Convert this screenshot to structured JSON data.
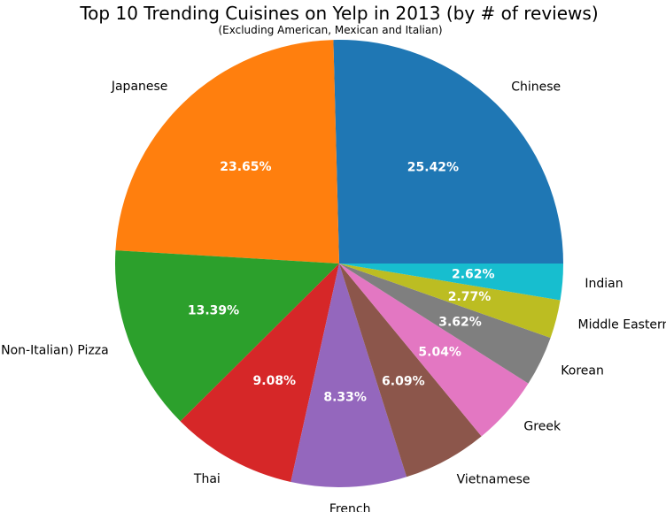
{
  "chart_data": {
    "type": "pie",
    "title": "Top 10 Trending Cuisines on Yelp in 2013 (by # of reviews)",
    "subtitle": "(Excluding American, Mexican and Italian)",
    "start_angle_deg": 0,
    "direction": "counterclockwise",
    "slices": [
      {
        "label": "Chinese",
        "value": 25.42,
        "pct_label": "25.42%",
        "color": "#1f77b4"
      },
      {
        "label": "Japanese",
        "value": 23.65,
        "pct_label": "23.65%",
        "color": "#ff7f0e"
      },
      {
        "label": "(Non-Italian) Pizza",
        "value": 13.39,
        "pct_label": "13.39%",
        "color": "#2ca02c"
      },
      {
        "label": "Thai",
        "value": 9.08,
        "pct_label": "9.08%",
        "color": "#d62728"
      },
      {
        "label": "French",
        "value": 8.33,
        "pct_label": "8.33%",
        "color": "#9467bd"
      },
      {
        "label": "Vietnamese",
        "value": 6.09,
        "pct_label": "6.09%",
        "color": "#8c564b"
      },
      {
        "label": "Greek",
        "value": 5.04,
        "pct_label": "5.04%",
        "color": "#e377c2"
      },
      {
        "label": "Korean",
        "value": 3.62,
        "pct_label": "3.62%",
        "color": "#7f7f7f"
      },
      {
        "label": "Middle Eastern",
        "value": 2.77,
        "pct_label": "2.77%",
        "color": "#bcbd22"
      },
      {
        "label": "Indian",
        "value": 2.62,
        "pct_label": "2.62%",
        "color": "#17becf"
      }
    ]
  }
}
